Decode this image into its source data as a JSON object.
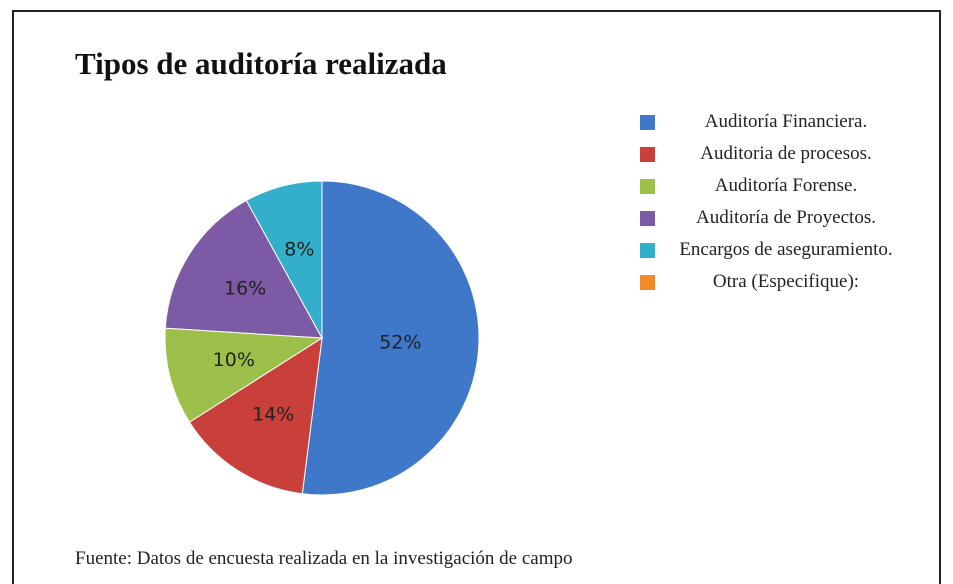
{
  "chart_data": {
    "type": "pie",
    "title": "Tipos de auditoría realizada",
    "categories": [
      "Auditoría Financiera.",
      "Auditoria de procesos.",
      "Auditoría Forense.",
      "Auditoría de Proyectos.",
      "Encargos de aseguramiento.",
      "Otra (Especifique):"
    ],
    "values": [
      52,
      14,
      10,
      16,
      8,
      0
    ],
    "value_labels": [
      "52%",
      "14%",
      "10%",
      "16%",
      "8%",
      null
    ],
    "colors": [
      "#3f78c8",
      "#c9403b",
      "#9cc04a",
      "#7d5aa6",
      "#33aecb",
      "#f28a2a"
    ],
    "legend": "right",
    "source": "Fuente: Datos de encuesta realizada en la investigación de campo"
  }
}
